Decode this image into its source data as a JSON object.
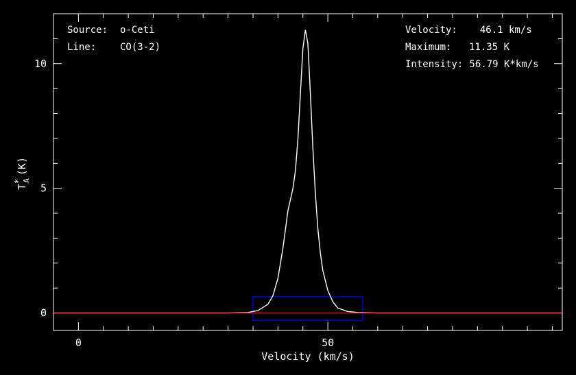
{
  "chart_data": {
    "type": "line",
    "title": "",
    "xlabel": "Velocity (km/s)",
    "ylabel_main": "T",
    "ylabel_sup": "*",
    "ylabel_sub": "A",
    "ylabel_unit": "(K)",
    "xlim": [
      -5,
      97
    ],
    "ylim": [
      -0.7,
      12
    ],
    "x_ticks": [
      0,
      50
    ],
    "y_ticks": [
      0,
      5,
      10
    ],
    "x_tick_labels": [
      "0",
      "50"
    ],
    "y_tick_labels": [
      "0",
      "5",
      "10"
    ],
    "grid": false,
    "series": [
      {
        "color": "#ffffff",
        "x": [
          -5,
          30,
          34,
          36,
          38,
          39,
          40,
          41,
          42,
          43,
          43.5,
          44,
          44.5,
          45,
          45.5,
          46,
          46.5,
          47,
          47.5,
          48,
          48.5,
          49,
          50,
          51,
          52,
          54,
          56,
          60,
          97
        ],
        "y": [
          0,
          0,
          0.02,
          0.1,
          0.35,
          0.7,
          1.4,
          2.6,
          4.1,
          5.0,
          5.7,
          7.0,
          8.8,
          10.6,
          11.35,
          10.8,
          8.8,
          6.6,
          4.8,
          3.4,
          2.4,
          1.7,
          0.9,
          0.45,
          0.2,
          0.06,
          0.02,
          0,
          0
        ]
      }
    ],
    "baseline": {
      "y": 0,
      "color": "#ff0000"
    },
    "integration_box": {
      "x_range": [
        35,
        57
      ],
      "y_range": [
        -0.3,
        0.65
      ],
      "color": "#0000ff"
    },
    "annotations_left": [
      {
        "label": "Source:",
        "value": "o-Ceti"
      },
      {
        "label": "Line:",
        "value": "CO(3-2)"
      }
    ],
    "annotations_right": [
      {
        "label": "Velocity:",
        "value": "  46.1 km/s"
      },
      {
        "label": "Maximum:",
        "value": "11.35 K"
      },
      {
        "label": "Intensity:",
        "value": " 56.79 K*km/s"
      }
    ]
  }
}
